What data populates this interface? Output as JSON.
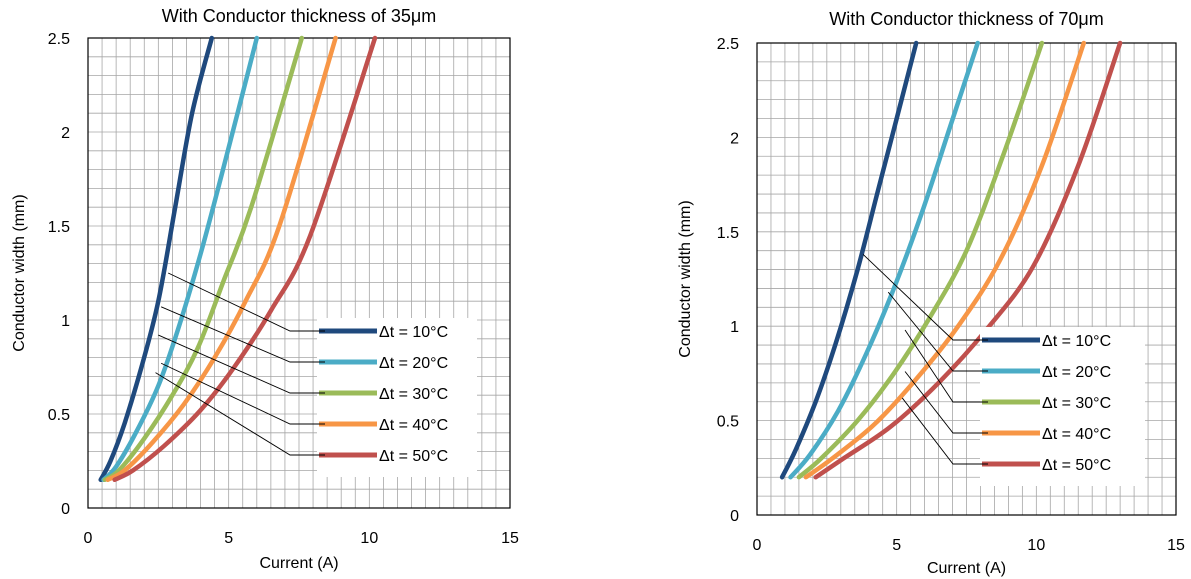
{
  "chart_data": [
    {
      "type": "line",
      "title": "With Conductor thickness of 35μm",
      "xlabel": "Current (A)",
      "ylabel": "Conductor width (mm)",
      "xlim": [
        0,
        15
      ],
      "ylim": [
        0,
        2.5
      ],
      "x_ticks": [
        "0",
        "5",
        "10",
        "15"
      ],
      "y_ticks": [
        "0",
        "0.5",
        "1",
        "1.5",
        "2",
        "2.5"
      ],
      "grid": true,
      "legend_position": "lower-right",
      "series": [
        {
          "name": "Δt = 10°C",
          "color": "#1f497d",
          "x": [
            0.45,
            0.8,
            1.3,
            1.9,
            2.5,
            3.1,
            3.7,
            4.4
          ],
          "y": [
            0.15,
            0.25,
            0.45,
            0.75,
            1.1,
            1.6,
            2.1,
            2.5
          ]
        },
        {
          "name": "Δt = 20°C",
          "color": "#4bacc6",
          "x": [
            0.55,
            1.0,
            1.7,
            2.5,
            3.2,
            4.0,
            4.8,
            6.0
          ],
          "y": [
            0.15,
            0.22,
            0.4,
            0.65,
            0.95,
            1.35,
            1.8,
            2.5
          ]
        },
        {
          "name": "Δt = 30°C",
          "color": "#9bbb59",
          "x": [
            0.6,
            1.1,
            2.0,
            3.0,
            3.9,
            4.8,
            5.8,
            7.6
          ],
          "y": [
            0.15,
            0.2,
            0.37,
            0.6,
            0.85,
            1.2,
            1.6,
            2.5
          ]
        },
        {
          "name": "Δt = 40°C",
          "color": "#f79646",
          "x": [
            0.7,
            1.3,
            2.3,
            3.4,
            4.5,
            5.6,
            6.8,
            8.8
          ],
          "y": [
            0.15,
            0.2,
            0.35,
            0.55,
            0.8,
            1.1,
            1.5,
            2.5
          ]
        },
        {
          "name": "Δt = 50°C",
          "color": "#c0504d",
          "x": [
            0.95,
            1.6,
            2.7,
            4.0,
            5.2,
            6.5,
            7.9,
            10.2
          ],
          "y": [
            0.15,
            0.2,
            0.33,
            0.52,
            0.75,
            1.05,
            1.45,
            2.5
          ]
        }
      ]
    },
    {
      "type": "line",
      "title": "With Conductor thickness of 70μm",
      "xlabel": "Current (A)",
      "ylabel": "Conductor width (mm)",
      "xlim": [
        0,
        15
      ],
      "ylim": [
        0,
        2.5
      ],
      "x_ticks": [
        "0",
        "5",
        "10",
        "15"
      ],
      "y_ticks": [
        "0",
        "0.5",
        "1",
        "1.5",
        "2",
        "2.5"
      ],
      "grid": true,
      "legend_position": "lower-right",
      "series": [
        {
          "name": "Δt = 10°C",
          "color": "#1f497d",
          "x": [
            0.9,
            1.4,
            2.1,
            2.8,
            3.6,
            4.3,
            5.0,
            5.7
          ],
          "y": [
            0.2,
            0.35,
            0.6,
            0.9,
            1.3,
            1.7,
            2.1,
            2.5
          ]
        },
        {
          "name": "Δt = 20°C",
          "color": "#4bacc6",
          "x": [
            1.2,
            1.9,
            2.9,
            3.9,
            4.9,
            5.9,
            6.9,
            7.9
          ],
          "y": [
            0.2,
            0.32,
            0.55,
            0.85,
            1.2,
            1.6,
            2.05,
            2.5
          ]
        },
        {
          "name": "Δt = 30°C",
          "color": "#9bbb59",
          "x": [
            1.5,
            2.3,
            3.6,
            4.9,
            6.2,
            7.5,
            8.8,
            10.2
          ],
          "y": [
            0.2,
            0.3,
            0.5,
            0.75,
            1.05,
            1.4,
            1.9,
            2.5
          ]
        },
        {
          "name": "Δt = 40°C",
          "color": "#f79646",
          "x": [
            1.75,
            2.7,
            4.2,
            5.7,
            7.2,
            8.7,
            10.2,
            11.7
          ],
          "y": [
            0.2,
            0.3,
            0.48,
            0.72,
            1.0,
            1.35,
            1.85,
            2.5
          ]
        },
        {
          "name": "Δt = 50°C",
          "color": "#c0504d",
          "x": [
            2.1,
            3.1,
            4.8,
            6.5,
            8.2,
            9.9,
            11.5,
            13.0
          ],
          "y": [
            0.2,
            0.3,
            0.47,
            0.7,
            0.98,
            1.32,
            1.85,
            2.5
          ]
        }
      ]
    }
  ]
}
